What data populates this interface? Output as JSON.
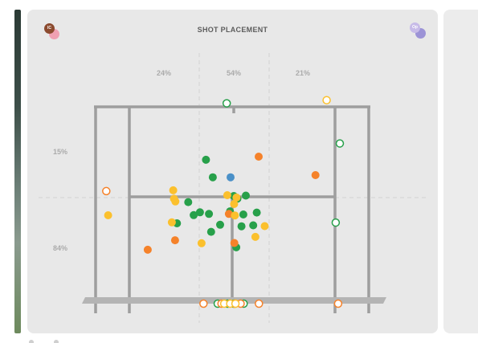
{
  "panel": {
    "title": "SHOT PLACEMENT",
    "left_player": {
      "initials": "IC",
      "avatar_color": "#8b4a2e",
      "partner_color": "#f0a0b2"
    },
    "right_player": {
      "initials": "Op",
      "avatar_color": "#c7bbe8",
      "partner_color": "#9c93d6"
    }
  },
  "zones": {
    "columns": [
      "24%",
      "54%",
      "21%"
    ],
    "rows": [
      "15%",
      "84%"
    ]
  },
  "legend_colors": {
    "green": "#27a04a",
    "orange": "#f5822a",
    "yellow": "#fbc02d",
    "blue": "#4a90c8"
  },
  "chart_data": {
    "type": "scatter",
    "title": "SHOT PLACEMENT",
    "column_percentages": [
      24,
      54,
      21
    ],
    "row_percentages": [
      15,
      84
    ],
    "series": [
      {
        "color_name": "green",
        "filled": true,
        "points": [
          [
            0.404,
            0.269
          ],
          [
            0.429,
            0.358
          ],
          [
            0.339,
            0.484
          ],
          [
            0.382,
            0.536
          ],
          [
            0.415,
            0.544
          ],
          [
            0.359,
            0.55
          ],
          [
            0.298,
            0.592
          ],
          [
            0.456,
            0.599
          ],
          [
            0.423,
            0.635
          ],
          [
            0.519,
            0.467
          ],
          [
            0.506,
            0.453
          ],
          [
            0.55,
            0.451
          ],
          [
            0.492,
            0.531
          ],
          [
            0.541,
            0.547
          ],
          [
            0.59,
            0.537
          ],
          [
            0.577,
            0.602
          ],
          [
            0.534,
            0.607
          ],
          [
            0.515,
            0.714
          ]
        ]
      },
      {
        "color_name": "orange",
        "filled": true,
        "points": [
          [
            0.597,
            0.253
          ],
          [
            0.805,
            0.347
          ],
          [
            0.488,
            0.544
          ],
          [
            0.508,
            0.692
          ],
          [
            0.291,
            0.678
          ],
          [
            0.191,
            0.726
          ]
        ]
      },
      {
        "color_name": "yellow",
        "filled": true,
        "points": [
          [
            0.284,
            0.424
          ],
          [
            0.287,
            0.467
          ],
          [
            0.292,
            0.481
          ],
          [
            0.279,
            0.587
          ],
          [
            0.388,
            0.693
          ],
          [
            0.482,
            0.449
          ],
          [
            0.507,
            0.494
          ],
          [
            0.516,
            0.461
          ],
          [
            0.51,
            0.552
          ],
          [
            0.619,
            0.606
          ],
          [
            0.585,
            0.661
          ],
          [
            0.046,
            0.551
          ]
        ]
      },
      {
        "color_name": "blue",
        "filled": true,
        "points": [
          [
            0.494,
            0.358
          ]
        ]
      },
      {
        "color_name": "green",
        "filled": false,
        "points": [
          [
            0.48,
            -0.018
          ],
          [
            0.894,
            0.186
          ],
          [
            0.879,
            0.588
          ],
          [
            0.447,
            1.0
          ],
          [
            0.506,
            1.0
          ],
          [
            0.542,
            1.0
          ],
          [
            0.483,
            1.0
          ]
        ]
      },
      {
        "color_name": "orange",
        "filled": false,
        "points": [
          [
            0.039,
            0.428
          ],
          [
            0.395,
            1.0
          ],
          [
            0.461,
            1.0
          ],
          [
            0.51,
            1.0
          ],
          [
            0.531,
            1.0
          ],
          [
            0.598,
            1.0
          ],
          [
            0.888,
            1.0
          ]
        ]
      },
      {
        "color_name": "yellow",
        "filled": false,
        "points": [
          [
            0.846,
            -0.034
          ],
          [
            0.471,
            1.0
          ],
          [
            0.493,
            1.0
          ],
          [
            0.512,
            1.0
          ]
        ]
      }
    ]
  }
}
